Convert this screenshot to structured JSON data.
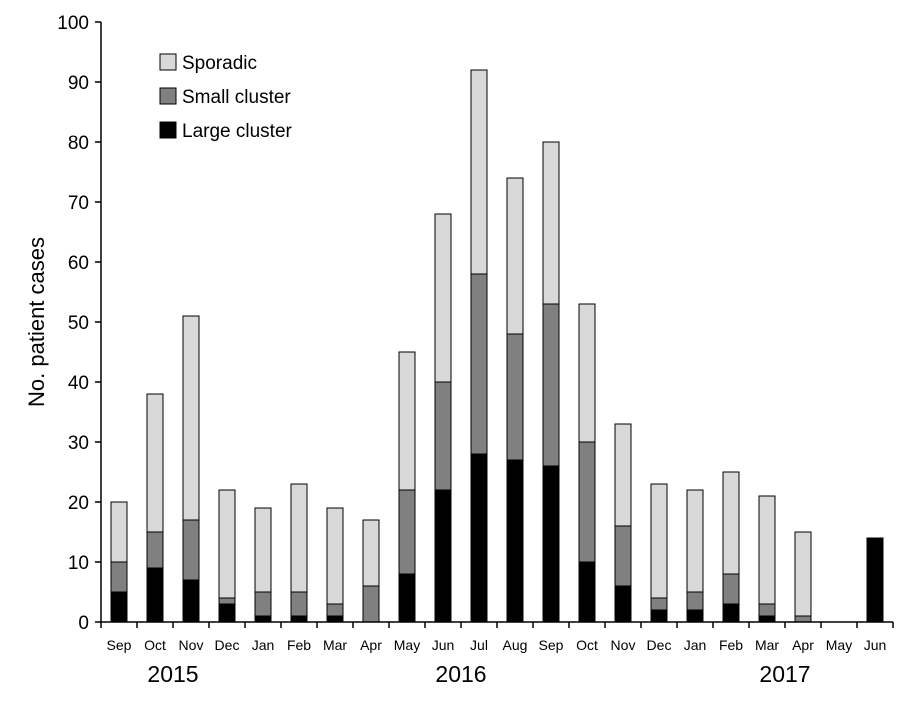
{
  "chart_data": {
    "type": "bar",
    "stacked": true,
    "ylabel": "No. patient cases",
    "ylim": [
      0,
      100
    ],
    "yticks": [
      0,
      10,
      20,
      30,
      40,
      50,
      60,
      70,
      80,
      90,
      100
    ],
    "categories": [
      "Sep",
      "Oct",
      "Nov",
      "Dec",
      "Jan",
      "Feb",
      "Mar",
      "Apr",
      "May",
      "Jun",
      "Jul",
      "Aug",
      "Sep",
      "Oct",
      "Nov",
      "Dec",
      "Jan",
      "Feb",
      "Mar",
      "Apr",
      "May",
      "Jun"
    ],
    "year_groups": [
      {
        "label": "2015",
        "start": 0,
        "end": 3
      },
      {
        "label": "2016",
        "start": 4,
        "end": 15
      },
      {
        "label": "2017",
        "start": 16,
        "end": 21
      }
    ],
    "series": [
      {
        "name": "Large cluster",
        "color": "#000000",
        "values": [
          5,
          9,
          7,
          3,
          1,
          1,
          1,
          0,
          8,
          22,
          28,
          27,
          26,
          10,
          6,
          2,
          2,
          3,
          1,
          0,
          0,
          14
        ]
      },
      {
        "name": "Small cluster",
        "color": "#808080",
        "values": [
          5,
          6,
          10,
          1,
          4,
          4,
          2,
          6,
          14,
          18,
          30,
          21,
          27,
          20,
          10,
          2,
          3,
          5,
          2,
          1,
          0,
          0
        ]
      },
      {
        "name": "Sporadic",
        "color": "#d9d9d9",
        "values": [
          10,
          23,
          34,
          18,
          14,
          18,
          16,
          11,
          23,
          28,
          34,
          26,
          27,
          23,
          17,
          19,
          17,
          17,
          18,
          14,
          0,
          0
        ]
      }
    ],
    "legend_order": [
      "Sporadic",
      "Small cluster",
      "Large cluster"
    ],
    "legend_position": "top-left",
    "grid": false
  }
}
